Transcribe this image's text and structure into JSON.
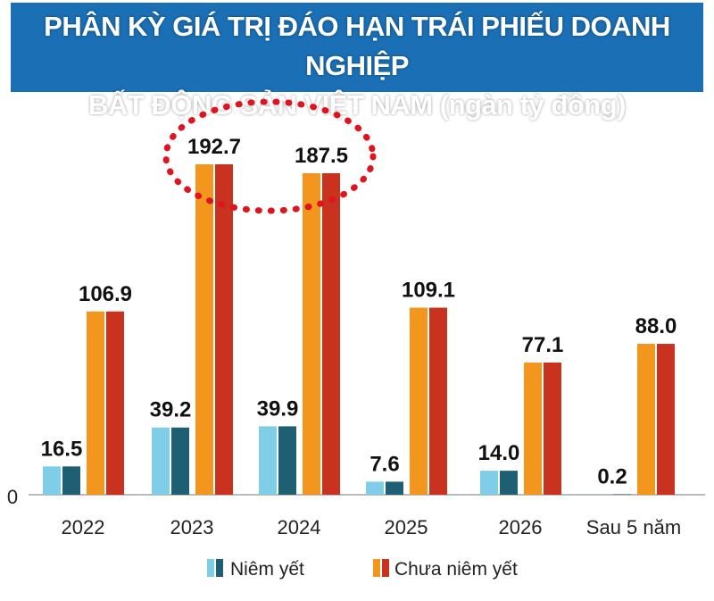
{
  "chart_data": {
    "type": "bar",
    "title": "PHÂN KỲ GIÁ TRỊ ĐÁO HẠN TRÁI PHIẾU DOANH NGHIỆP BẤT ĐỘNG SẢN VIỆT NAM (ngàn tỷ đồng)",
    "title_lines": [
      "PHÂN KỲ GIÁ TRỊ ĐÁO HẠN TRÁI PHIẾU DOANH NGHIỆP",
      "BẤT ĐỘNG SẢN VIỆT NAM (ngàn tỷ đồng)"
    ],
    "categories": [
      "2022",
      "2023",
      "2024",
      "2025",
      "2026",
      "Sau 5 năm"
    ],
    "series": [
      {
        "name": "Niêm yết",
        "values": [
          16.5,
          39.2,
          39.9,
          7.6,
          14.0,
          0.2
        ],
        "labels": [
          "16.5",
          "39.2",
          "39.9",
          "7.6",
          "14.0",
          "0.2"
        ],
        "colors": [
          "#7fcde6",
          "#1f5f74"
        ]
      },
      {
        "name": "Chưa niêm yết",
        "values": [
          106.9,
          192.7,
          187.5,
          109.1,
          77.1,
          88.0
        ],
        "labels": [
          "106.9",
          "192.7",
          "187.5",
          "109.1",
          "77.1",
          "88.0"
        ],
        "colors": [
          "#f2961e",
          "#c8321e"
        ]
      }
    ],
    "y_tick_label": "0",
    "ylim": [
      0,
      200
    ],
    "grid": false,
    "legend": "bottom",
    "highlight": {
      "categories": [
        "2023",
        "2024"
      ],
      "style": "red dotted ellipse",
      "color": "#e0141e"
    },
    "title_background": "#1a6fb5"
  }
}
